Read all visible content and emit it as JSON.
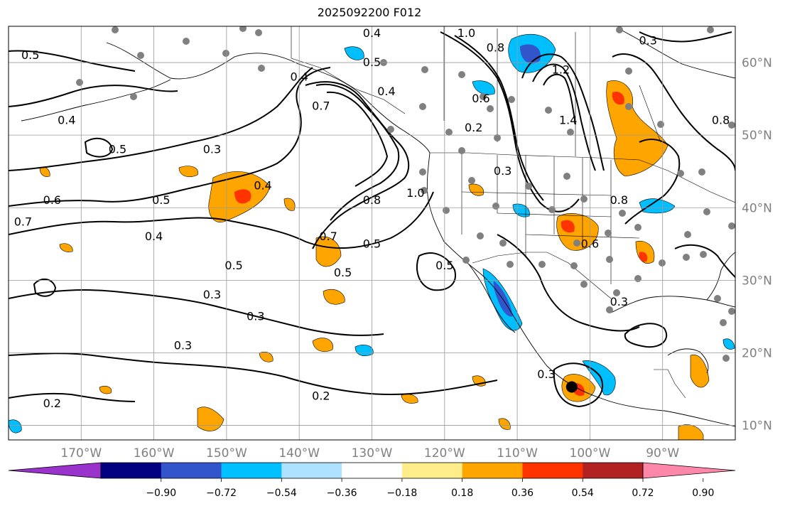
{
  "title": "2025092200 F012",
  "map": {
    "lon_range": [
      -180,
      -80
    ],
    "lat_range": [
      8,
      65
    ],
    "lon_ticks": [
      {
        "value": -170,
        "label": "170°W"
      },
      {
        "value": -160,
        "label": "160°W"
      },
      {
        "value": -150,
        "label": "150°W"
      },
      {
        "value": -140,
        "label": "140°W"
      },
      {
        "value": -130,
        "label": "130°W"
      },
      {
        "value": -120,
        "label": "120°W"
      },
      {
        "value": -110,
        "label": "110°W"
      },
      {
        "value": -100,
        "label": "100°W"
      },
      {
        "value": -90,
        "label": "90°W"
      }
    ],
    "lat_ticks": [
      {
        "value": 10,
        "label": "10°N"
      },
      {
        "value": 20,
        "label": "20°N"
      },
      {
        "value": 30,
        "label": "30°N"
      },
      {
        "value": 40,
        "label": "40°N"
      },
      {
        "value": 50,
        "label": "50°N"
      },
      {
        "value": 60,
        "label": "60°N"
      }
    ],
    "grid": true,
    "storm_marker": {
      "lon": -102.5,
      "lat": 15.3
    },
    "contour_labels": [
      {
        "text": "0.5",
        "lon": -177,
        "lat": 61
      },
      {
        "text": "0.4",
        "lon": -172,
        "lat": 52
      },
      {
        "text": "0.5",
        "lon": -165,
        "lat": 48
      },
      {
        "text": "0.6",
        "lon": -174,
        "lat": 41
      },
      {
        "text": "0.5",
        "lon": -159,
        "lat": 41
      },
      {
        "text": "0.7",
        "lon": -178,
        "lat": 38
      },
      {
        "text": "0.4",
        "lon": -160,
        "lat": 36
      },
      {
        "text": "0.3",
        "lon": -152,
        "lat": 48
      },
      {
        "text": "0.4",
        "lon": -145,
        "lat": 43
      },
      {
        "text": "0.4",
        "lon": -140,
        "lat": 58
      },
      {
        "text": "0.7",
        "lon": -137,
        "lat": 54
      },
      {
        "text": "0.4",
        "lon": -130,
        "lat": 64
      },
      {
        "text": "0.5",
        "lon": -130,
        "lat": 60
      },
      {
        "text": "0.4",
        "lon": -128,
        "lat": 56
      },
      {
        "text": "1.0",
        "lon": -117,
        "lat": 64
      },
      {
        "text": "0.8",
        "lon": -113,
        "lat": 62
      },
      {
        "text": "0.6",
        "lon": -115,
        "lat": 55
      },
      {
        "text": "0.2",
        "lon": -116,
        "lat": 51
      },
      {
        "text": "1.2",
        "lon": -104,
        "lat": 59
      },
      {
        "text": "1.4",
        "lon": -103,
        "lat": 52
      },
      {
        "text": "0.3",
        "lon": -112,
        "lat": 45
      },
      {
        "text": "0.8",
        "lon": -130,
        "lat": 41
      },
      {
        "text": "1.0",
        "lon": -124,
        "lat": 42
      },
      {
        "text": "0.7",
        "lon": -136,
        "lat": 36
      },
      {
        "text": "0.5",
        "lon": -130,
        "lat": 35
      },
      {
        "text": "0.5",
        "lon": -134,
        "lat": 31
      },
      {
        "text": "0.5",
        "lon": -120,
        "lat": 32
      },
      {
        "text": "0.5",
        "lon": -149,
        "lat": 32
      },
      {
        "text": "0.3",
        "lon": -152,
        "lat": 28
      },
      {
        "text": "0.3",
        "lon": -146,
        "lat": 25
      },
      {
        "text": "0.3",
        "lon": -156,
        "lat": 21
      },
      {
        "text": "0.2",
        "lon": -174,
        "lat": 13
      },
      {
        "text": "0.2",
        "lon": -137,
        "lat": 14
      },
      {
        "text": "0.8",
        "lon": -96,
        "lat": 41
      },
      {
        "text": "0.6",
        "lon": -100,
        "lat": 35
      },
      {
        "text": "0.3",
        "lon": -96,
        "lat": 27
      },
      {
        "text": "0.3",
        "lon": -106,
        "lat": 17
      },
      {
        "text": "0.3",
        "lon": -92,
        "lat": 63
      },
      {
        "text": "0.8",
        "lon": -82,
        "lat": 52
      }
    ]
  },
  "colorbar": {
    "colors": [
      "#9933cc",
      "#000080",
      "#3355cc",
      "#00bfff",
      "#aee0ff",
      "#ffffff",
      "#ffec8b",
      "#ffa500",
      "#ff3300",
      "#b22222",
      "#ff88aa"
    ],
    "ticks": [
      "−0.90",
      "−0.72",
      "−0.54",
      "−0.36",
      "−0.18",
      "0.18",
      "0.36",
      "0.54",
      "0.72",
      "0.90"
    ]
  }
}
